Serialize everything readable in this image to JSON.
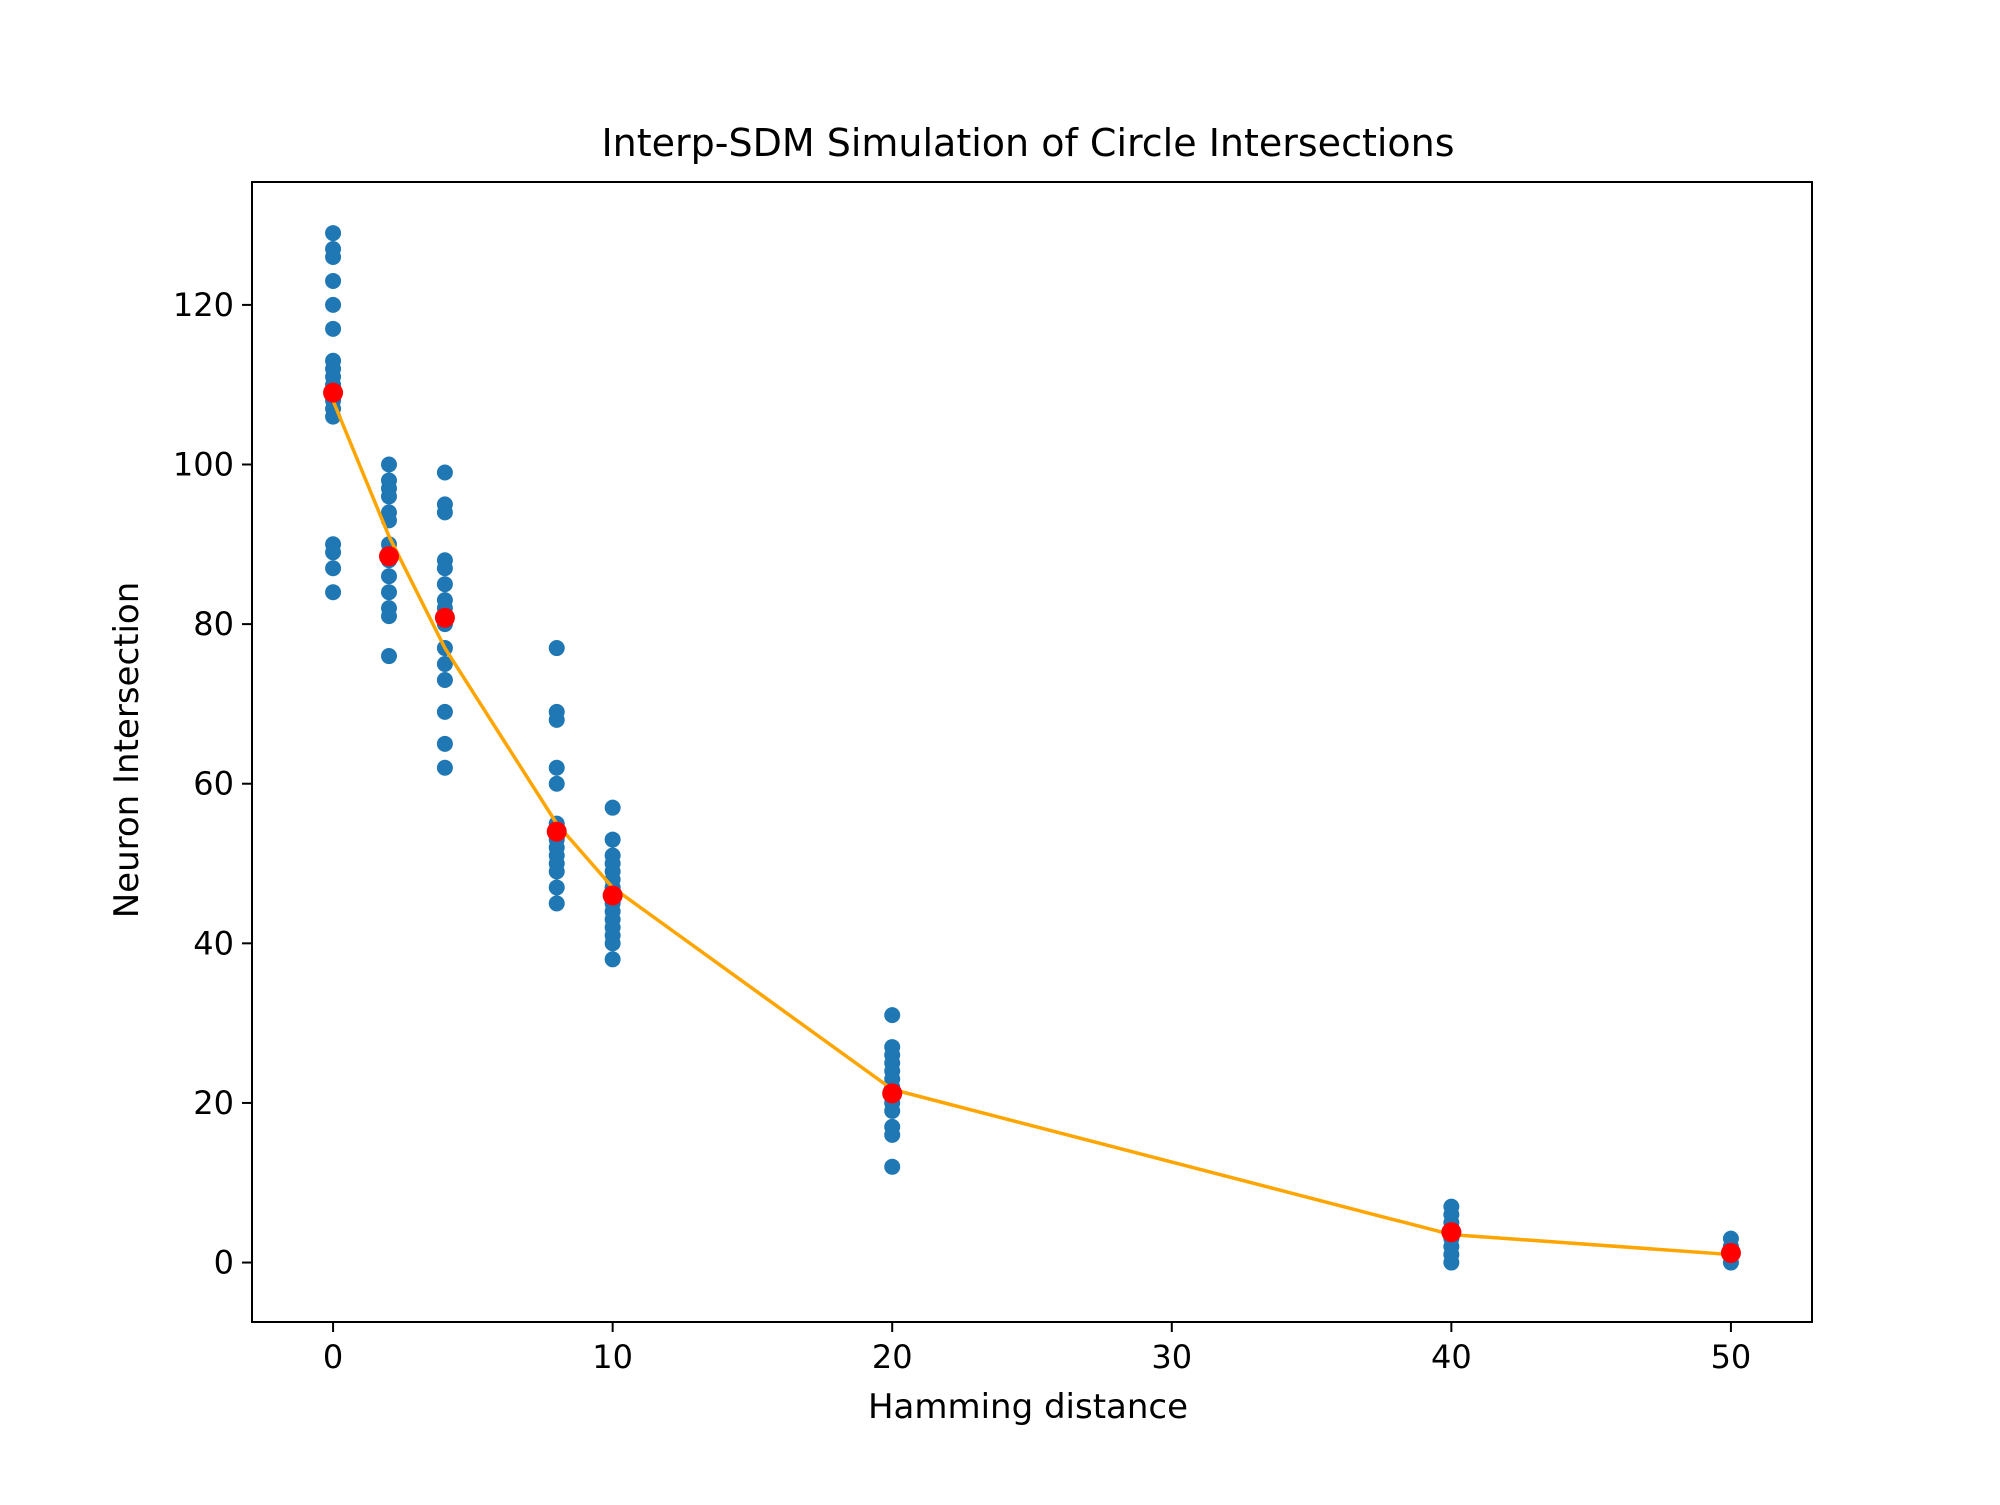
{
  "chart_data": {
    "type": "scatter",
    "title": "Interp-SDM Simulation of Circle Intersections",
    "xlabel": "Hamming distance",
    "ylabel": "Neuron Intersection",
    "xlim": [
      -2.9,
      52.9
    ],
    "ylim": [
      -7.45,
      135.4
    ],
    "x_ticks": [
      0,
      10,
      20,
      30,
      40,
      50
    ],
    "y_ticks": [
      0,
      20,
      40,
      60,
      80,
      100,
      120
    ],
    "grid": false,
    "legend": "none",
    "series": [
      {
        "kind": "scatter",
        "color": "#1f77b4",
        "points": [
          [
            0,
            129
          ],
          [
            0,
            127
          ],
          [
            0,
            126
          ],
          [
            0,
            123
          ],
          [
            0,
            120
          ],
          [
            0,
            117
          ],
          [
            0,
            113
          ],
          [
            0,
            112
          ],
          [
            0,
            111
          ],
          [
            0,
            110
          ],
          [
            0,
            109
          ],
          [
            0,
            108
          ],
          [
            0,
            107
          ],
          [
            0,
            106
          ],
          [
            0,
            90
          ],
          [
            0,
            89
          ],
          [
            0,
            87
          ],
          [
            0,
            84
          ],
          [
            2,
            100
          ],
          [
            2,
            98
          ],
          [
            2,
            97
          ],
          [
            2,
            96
          ],
          [
            2,
            94
          ],
          [
            2,
            93
          ],
          [
            2,
            90
          ],
          [
            2,
            89
          ],
          [
            2,
            88
          ],
          [
            2,
            86
          ],
          [
            2,
            84
          ],
          [
            2,
            82
          ],
          [
            2,
            81
          ],
          [
            2,
            76
          ],
          [
            4,
            99
          ],
          [
            4,
            95
          ],
          [
            4,
            94
          ],
          [
            4,
            88
          ],
          [
            4,
            87
          ],
          [
            4,
            85
          ],
          [
            4,
            83
          ],
          [
            4,
            82
          ],
          [
            4,
            81
          ],
          [
            4,
            80
          ],
          [
            4,
            77
          ],
          [
            4,
            75
          ],
          [
            4,
            73
          ],
          [
            4,
            69
          ],
          [
            4,
            65
          ],
          [
            4,
            62
          ],
          [
            8,
            77
          ],
          [
            8,
            69
          ],
          [
            8,
            68
          ],
          [
            8,
            62
          ],
          [
            8,
            60
          ],
          [
            8,
            55
          ],
          [
            8,
            54
          ],
          [
            8,
            53
          ],
          [
            8,
            52
          ],
          [
            8,
            51
          ],
          [
            8,
            50
          ],
          [
            8,
            49
          ],
          [
            8,
            47
          ],
          [
            8,
            45
          ],
          [
            10,
            57
          ],
          [
            10,
            53
          ],
          [
            10,
            51
          ],
          [
            10,
            50
          ],
          [
            10,
            49
          ],
          [
            10,
            48
          ],
          [
            10,
            47
          ],
          [
            10,
            46
          ],
          [
            10,
            45
          ],
          [
            10,
            44
          ],
          [
            10,
            43
          ],
          [
            10,
            42
          ],
          [
            10,
            41
          ],
          [
            10,
            40
          ],
          [
            10,
            38
          ],
          [
            20,
            31
          ],
          [
            20,
            27
          ],
          [
            20,
            26
          ],
          [
            20,
            25
          ],
          [
            20,
            24
          ],
          [
            20,
            23
          ],
          [
            20,
            22
          ],
          [
            20,
            21
          ],
          [
            20,
            20
          ],
          [
            20,
            19
          ],
          [
            20,
            17
          ],
          [
            20,
            16
          ],
          [
            20,
            12
          ],
          [
            40,
            7
          ],
          [
            40,
            6
          ],
          [
            40,
            5
          ],
          [
            40,
            4
          ],
          [
            40,
            3
          ],
          [
            40,
            2
          ],
          [
            40,
            1
          ],
          [
            40,
            0
          ],
          [
            50,
            3
          ],
          [
            50,
            2
          ],
          [
            50,
            1
          ],
          [
            50,
            0
          ]
        ]
      },
      {
        "kind": "line",
        "color": "#ffa500",
        "points": [
          [
            0,
            108
          ],
          [
            2,
            91
          ],
          [
            4,
            77
          ],
          [
            8,
            55
          ],
          [
            10,
            47
          ],
          [
            20,
            21.7
          ],
          [
            40,
            3.5
          ],
          [
            50,
            1
          ]
        ]
      },
      {
        "kind": "scatter",
        "color": "#ff0000",
        "points": [
          [
            0,
            109
          ],
          [
            2,
            88.5
          ],
          [
            4,
            80.8
          ],
          [
            8,
            54
          ],
          [
            10,
            46
          ],
          [
            20,
            21.2
          ],
          [
            40,
            3.8
          ],
          [
            50,
            1.2
          ]
        ]
      }
    ]
  }
}
